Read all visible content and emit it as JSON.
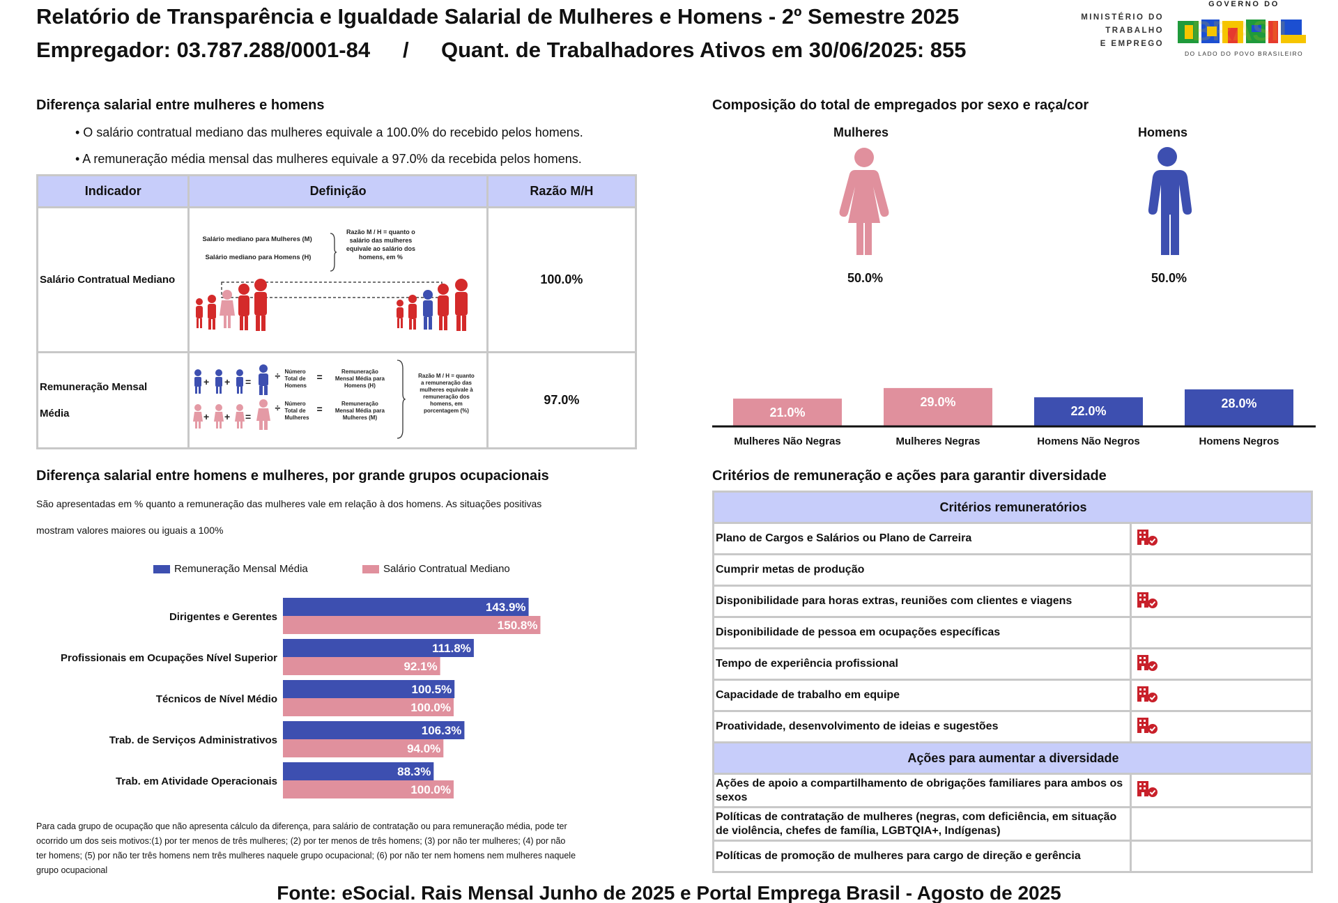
{
  "header": {
    "title": "Relatório de Transparência e Igualdade Salarial de Mulheres e Homens - 2º Semestre 2025",
    "employer": "Empregador: 03.787.288/0001-84",
    "separator": "/",
    "workers": "Quant. de Trabalhadores Ativos em 30/06/2025: 855"
  },
  "logos": {
    "ministry": [
      "MINISTÉRIO DO",
      "TRABALHO",
      "E EMPREGO"
    ],
    "gov_top": "GOVERNO DO",
    "gov_main": "BRASIL",
    "gov_slogan": "DO LADO DO POVO BRASILEIRO"
  },
  "salary_diff": {
    "title": "Diferença salarial entre mulheres e homens",
    "bullets": [
      "• O salário contratual mediano das mulheres equivale a 100.0% do recebido pelos homens.",
      "• A remuneração média mensal das mulheres equivale a 97.0% da recebida pelos homens."
    ],
    "table": {
      "headers": [
        "Indicador",
        "Definição",
        "Razão M/H"
      ],
      "rows": [
        {
          "indicator": "Salário Contratual Mediano",
          "ratio": "100.0%",
          "def_lines": [
            "Salário mediano para Mulheres (M)",
            "Salário mediano para Homens (H)"
          ],
          "def_note": [
            "Razão M / H = quanto o",
            "salário das mulheres",
            "equivale ao salário dos",
            "homens, em %"
          ]
        },
        {
          "indicator_lines": [
            "Remuneração Mensal",
            "Média"
          ],
          "ratio": "97.0%",
          "def_men": [
            "Número",
            "Total de",
            "Homens"
          ],
          "def_women": [
            "Número",
            "Total de",
            "Mulheres"
          ],
          "def_men_result": [
            "Remuneração",
            "Mensal Média para",
            "Homens (H)"
          ],
          "def_women_result": [
            "Remuneração",
            "Mensal Média para",
            "Mulheres (M)"
          ],
          "def_note": [
            "Razão M / H = quanto",
            "a remuneração das",
            "mulheres equivale à",
            "remuneração dos",
            "homens, em",
            "porcentagem (%)"
          ]
        }
      ]
    }
  },
  "composition": {
    "title": "Composição do total de empregados por sexo e raça/cor",
    "women_label": "Mulheres",
    "men_label": "Homens",
    "women_pct": "50.0%",
    "men_pct": "50.0%",
    "colors": {
      "women": "#e0909d",
      "men": "#3d4fb0"
    }
  },
  "occupational": {
    "title": "Diferença salarial entre homens e mulheres, por grande grupos ocupacionais",
    "desc": [
      "São apresentadas em % quanto a remuneração das mulheres vale em relação à dos homens. As situações positivas",
      "mostram valores maiores ou iguais a 100%"
    ],
    "note": [
      "Para cada grupo de ocupação que não apresenta cálculo da diferença, para salário de contratação ou para remuneração média, pode ter",
      "ocorrido um dos seis motivos:(1) por ter menos de três mulheres; (2) por ter menos de três homens; (3) por não ter mulheres; (4) por não",
      "ter homens; (5) por não ter três homens nem três mulheres naquele grupo ocupacional; (6) por não ter nem homens nem mulheres naquele",
      "grupo ocupacional"
    ]
  },
  "diversity": {
    "title": "Critérios de remuneração e ações para garantir diversidade",
    "criteria_header": "Critérios remuneratórios",
    "criteria": [
      {
        "label": "Plano de Cargos e Salários ou Plano de Carreira",
        "icon": true
      },
      {
        "label": "Cumprir metas de produção",
        "icon": false
      },
      {
        "label": "Disponibilidade para horas extras, reuniões com clientes e viagens",
        "icon": true
      },
      {
        "label": "Disponibilidade de pessoa em ocupações específicas",
        "icon": false
      },
      {
        "label": "Tempo de experiência profissional",
        "icon": true
      },
      {
        "label": "Capacidade de trabalho em equipe",
        "icon": true
      },
      {
        "label": "Proatividade, desenvolvimento de ideias e sugestões",
        "icon": true
      }
    ],
    "actions_header": "Ações para aumentar a diversidade",
    "actions": [
      {
        "label": "Ações de apoio a compartilhamento de obrigações familiares para ambos os sexos",
        "icon": true
      },
      {
        "label": "Políticas de contratação de mulheres (negras, com deficiência, em situação de violência, chefes de família, LGBTQIA+, Indígenas)",
        "icon": false
      },
      {
        "label": "Políticas de promoção de mulheres para cargo de direção e gerência",
        "icon": false
      }
    ],
    "icon_name": "building-check-icon",
    "icon_color": "#c8202a"
  },
  "footer": {
    "source": "Fonte: eSocial. Rais Mensal Junho de 2025 e Portal Emprega Brasil - Agosto de 2025"
  },
  "chart_data": [
    {
      "type": "bar",
      "categories": [
        "Mulheres Não Negras",
        "Mulheres Negras",
        "Homens Não Negros",
        "Homens Negros"
      ],
      "values": [
        21.0,
        29.0,
        22.0,
        28.0
      ],
      "labels": [
        "21.0%",
        "29.0%",
        "22.0%",
        "28.0%"
      ],
      "colors": [
        "#e0909d",
        "#e0909d",
        "#3d4fb0",
        "#3d4fb0"
      ]
    },
    {
      "type": "bar",
      "orientation": "horizontal",
      "categories": [
        "Dirigentes e Gerentes",
        "Profissionais em Ocupações Nível Superior",
        "Técnicos de Nível Médio",
        "Trab. de Serviços Administrativos",
        "Trab. em Atividade Operacionais"
      ],
      "series": [
        {
          "name": "Remuneração Mensal Média",
          "color": "#3d4fb0",
          "values": [
            143.9,
            111.8,
            100.5,
            106.3,
            88.3
          ],
          "labels": [
            "143.9%",
            "111.8%",
            "100.5%",
            "106.3%",
            "88.3%"
          ]
        },
        {
          "name": "Salário Contratual Mediano",
          "color": "#e0909d",
          "values": [
            150.8,
            92.1,
            100.0,
            94.0,
            100.0
          ],
          "labels": [
            "150.8%",
            "92.1%",
            "100.0%",
            "94.0%",
            "100.0%"
          ]
        }
      ]
    }
  ]
}
